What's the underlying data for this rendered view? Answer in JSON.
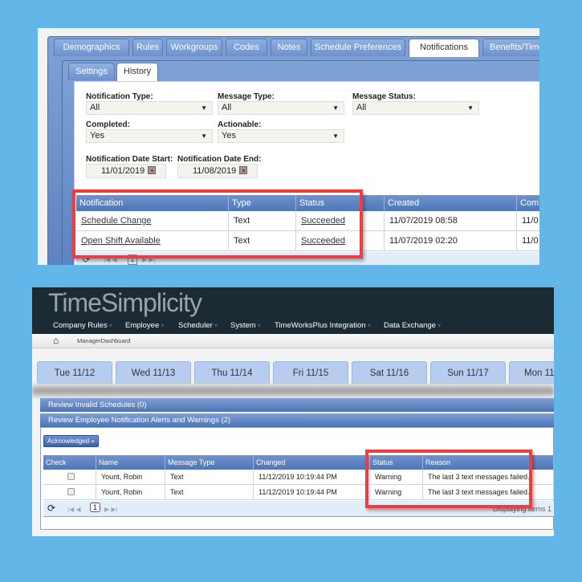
{
  "top": {
    "tabs": [
      "Demographics",
      "Rules",
      "Workgroups",
      "Codes",
      "Notes",
      "Schedule Preferences",
      "Notifications",
      "Benefits/Time C"
    ],
    "active_tab": "Notifications",
    "subtabs": [
      "Settings",
      "History"
    ],
    "active_subtab": "History",
    "filters": {
      "notification_type": {
        "label": "Notification Type:",
        "value": "All"
      },
      "message_type": {
        "label": "Message Type:",
        "value": "All"
      },
      "message_status": {
        "label": "Message Status:",
        "value": "All"
      },
      "completed": {
        "label": "Completed:",
        "value": "Yes"
      },
      "actionable": {
        "label": "Actionable:",
        "value": "Yes"
      },
      "date_start": {
        "label": "Notification Date Start:",
        "value": "11/01/2019"
      },
      "date_end": {
        "label": "Notification Date End:",
        "value": "11/08/2019"
      }
    },
    "grid": {
      "columns": [
        "Notification",
        "Type",
        "Status",
        "Created",
        "Comp"
      ],
      "rows": [
        {
          "notification": "Schedule Change",
          "type": "Text",
          "status": "Succeeded",
          "created": "11/07/2019 08:58",
          "comp": "11/0"
        },
        {
          "notification": "Open Shift Available",
          "type": "Text",
          "status": "Succeeded",
          "created": "11/07/2019 02:20",
          "comp": "11/0"
        }
      ],
      "page": "1"
    },
    "highlight_color": "#f03c3c"
  },
  "bottom": {
    "logo": "TimeSimplicity",
    "menu": [
      "Company Rules",
      "Employee",
      "Scheduler",
      "System",
      "TimeWorksPlus Integration",
      "Data Exchange"
    ],
    "breadcrumb": "ManagerDashboard",
    "days": [
      "Tue 11/12",
      "Wed 11/13",
      "Thu 11/14",
      "Fri 11/15",
      "Sat 11/16",
      "Sun 11/17",
      "Mon 11"
    ],
    "sections": [
      "Review Invalid Schedules (0)",
      "Review Employee Notification Alerts and Warnings (2)"
    ],
    "acknowledged_button": "Acknowledged »",
    "grid": {
      "columns": [
        "Check",
        "Name",
        "Message Type",
        "Changed",
        "Status",
        "Reason"
      ],
      "rows": [
        {
          "name": "Yount, Robin",
          "message_type": "Text",
          "changed": "11/12/2019 10:19:44 PM",
          "status": "Warning",
          "reason": "The last 3 text messages failed."
        },
        {
          "name": "Yount, Robin",
          "message_type": "Text",
          "changed": "11/12/2019 10:19:44 PM",
          "status": "Warning",
          "reason": "The last 3 text messages failed."
        }
      ],
      "page": "1",
      "pager_info": "Displaying items 1 - 2"
    }
  }
}
